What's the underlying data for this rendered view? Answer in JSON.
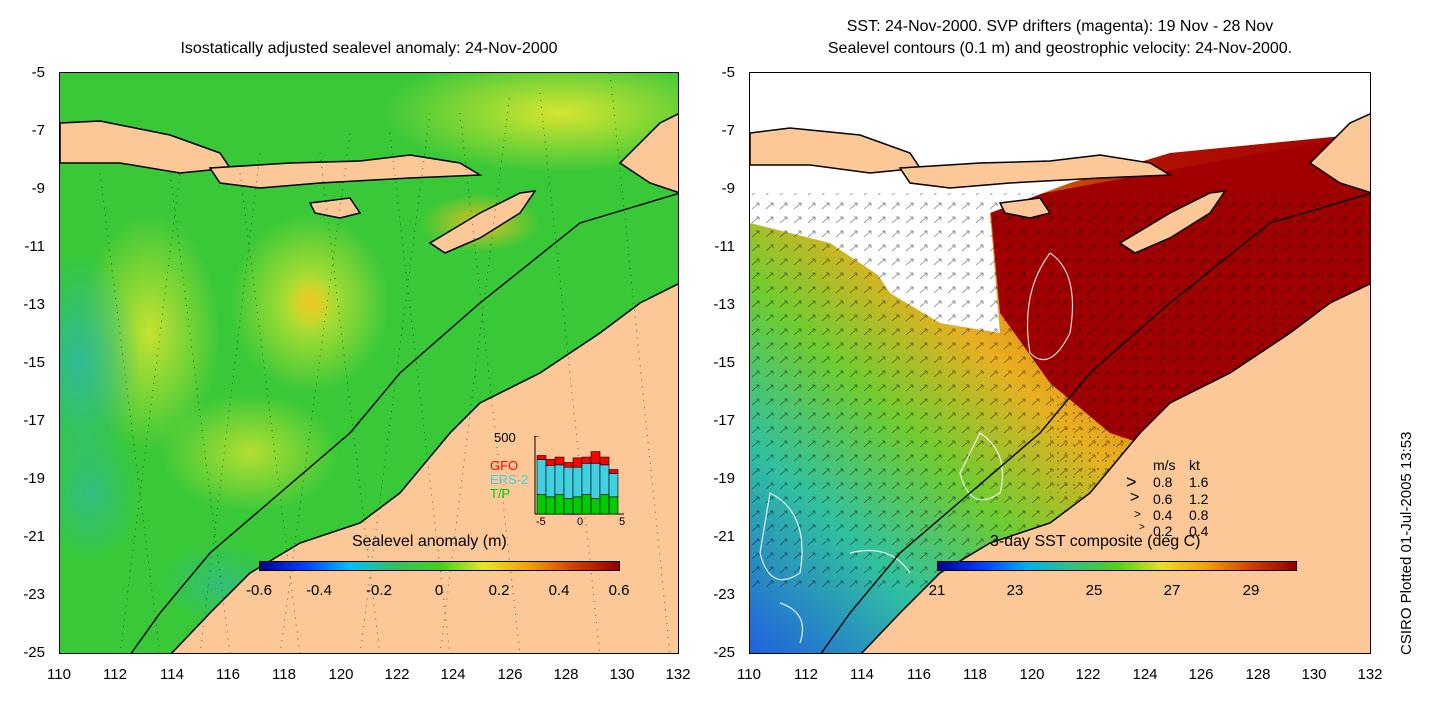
{
  "left": {
    "title": "Isostatically adjusted sealevel anomaly: 24-Nov-2000",
    "colorbar": {
      "title": "Sealevel anomaly (m)",
      "ticks": [
        "-0.6",
        "-0.4",
        "-0.2",
        "0",
        "0.2",
        "0.4",
        "0.6"
      ]
    },
    "inset": {
      "ymax_label": "500",
      "satellites": [
        "GFO",
        "ERS-2",
        "T/P"
      ],
      "sat_colors": [
        "#ff0000",
        "#40d0e0",
        "#00cc00"
      ],
      "x_ticks": [
        "-5",
        "0",
        "5"
      ],
      "bars": [
        {
          "tp": 0.25,
          "ers": 0.45,
          "gfo": 0.05
        },
        {
          "tp": 0.22,
          "ers": 0.4,
          "gfo": 0.08
        },
        {
          "tp": 0.25,
          "ers": 0.38,
          "gfo": 0.1
        },
        {
          "tp": 0.2,
          "ers": 0.4,
          "gfo": 0.06
        },
        {
          "tp": 0.22,
          "ers": 0.38,
          "gfo": 0.12
        },
        {
          "tp": 0.25,
          "ers": 0.4,
          "gfo": 0.08
        },
        {
          "tp": 0.2,
          "ers": 0.45,
          "gfo": 0.15
        },
        {
          "tp": 0.25,
          "ers": 0.38,
          "gfo": 0.1
        },
        {
          "tp": 0.22,
          "ers": 0.3,
          "gfo": 0.05
        }
      ]
    }
  },
  "right": {
    "title_line1": "SST: 24-Nov-2000. SVP drifters (magenta): 19 Nov - 28 Nov",
    "title_line2": "Sealevel contours (0.1 m) and geostrophic velocity: 24-Nov-2000.",
    "colorbar": {
      "title": "3-day SST composite (deg C)",
      "ticks": [
        "21",
        "23",
        "25",
        "27",
        "29"
      ]
    },
    "velocity_legend": {
      "header_ms": "m/s",
      "header_kt": "kt",
      "rows": [
        {
          "ms": "0.8",
          "kt": "1.6"
        },
        {
          "ms": "0.6",
          "kt": "1.2"
        },
        {
          "ms": "0.4",
          "kt": "0.8"
        },
        {
          "ms": "0.2",
          "kt": "0.4"
        }
      ]
    }
  },
  "axes": {
    "y_ticks": [
      "-5",
      "-7",
      "-9",
      "-11",
      "-13",
      "-15",
      "-17",
      "-19",
      "-21",
      "-23",
      "-25"
    ],
    "x_ticks": [
      "110",
      "112",
      "114",
      "116",
      "118",
      "120",
      "122",
      "124",
      "126",
      "128",
      "130",
      "132"
    ]
  },
  "credit": "CSIRO Plotted 01-Jul-2005 13:53",
  "colors": {
    "land": "#fcc898",
    "sla_base": "#33cc33",
    "sst_hot": "#a00000"
  }
}
